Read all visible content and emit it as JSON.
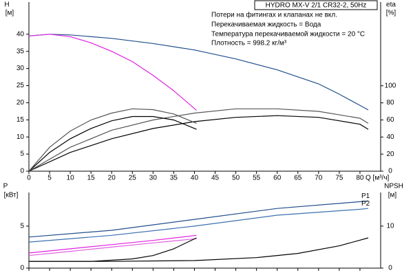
{
  "chart_data": [
    {
      "type": "line",
      "title": "HYDRO MX-V 2/1 CR32-2, 50Hz",
      "annotations": [
        "Потери на фитингах и клапанах не вкл.",
        "Перекачиваемая жидкость = Вода",
        "Температура перекачиваемой жидкости = 20 °C",
        "Плотность = 998.2 кг/м³"
      ],
      "ylabel": "H",
      "yunit": "[м]",
      "y2label": "eta",
      "y2unit": "[%]",
      "xlabel": "Q [м³/ч]",
      "xlim": [
        0,
        85
      ],
      "xticks": [
        0,
        5,
        10,
        15,
        20,
        25,
        30,
        35,
        40,
        45,
        50,
        55,
        60,
        65,
        70,
        75,
        80
      ],
      "ylim": [
        0,
        49.4
      ],
      "yticks": [
        0,
        5,
        10,
        15,
        20,
        25,
        30,
        35,
        40
      ],
      "y2lim": [
        0,
        198
      ],
      "y2ticks": [
        0,
        20,
        40,
        60,
        80,
        100
      ],
      "series": [
        {
          "color": "#1f4e8c",
          "x": [
            0,
            5,
            10,
            20,
            30,
            40,
            50,
            60,
            70,
            75,
            82
          ],
          "values": [
            39.5,
            40,
            39.8,
            38.8,
            37.3,
            35.4,
            32.8,
            29.6,
            25.5,
            22.5,
            17.9
          ]
        },
        {
          "color": "#e020e0",
          "x": [
            0,
            5,
            10,
            15,
            20,
            25,
            30,
            35,
            40.5
          ],
          "values": [
            39.5,
            40,
            39.3,
            37.5,
            35,
            32,
            28,
            23.5,
            17.8
          ]
        },
        {
          "color": "#000000",
          "axis": "y2",
          "x": [
            0,
            10,
            20,
            30,
            40,
            50,
            60,
            70,
            80,
            82
          ],
          "values": [
            0,
            22,
            38,
            50,
            58,
            63,
            65,
            63,
            55,
            49
          ]
        },
        {
          "color": "#555555",
          "axis": "y2",
          "x": [
            0,
            10,
            20,
            30,
            40,
            50,
            60,
            70,
            80,
            82
          ],
          "values": [
            0,
            28,
            48,
            60,
            68,
            73,
            73,
            70,
            62,
            56
          ]
        },
        {
          "color": "#000000",
          "axis": "y2",
          "x": [
            0,
            5,
            10,
            15,
            20,
            25,
            30,
            35,
            40.5
          ],
          "values": [
            0,
            22,
            38,
            50,
            59,
            64,
            64,
            60,
            49
          ]
        },
        {
          "color": "#555555",
          "axis": "y2",
          "x": [
            0,
            5,
            10,
            15,
            20,
            25,
            30,
            35,
            40.5
          ],
          "values": [
            0,
            28,
            47,
            60,
            68,
            73,
            72,
            67,
            56
          ]
        }
      ]
    },
    {
      "type": "line",
      "ylabel": "P",
      "yunit": "[кВт]",
      "y2label": "NPSH",
      "y2unit": "[м]",
      "xlim": [
        0,
        85
      ],
      "xticks": [
        0,
        5,
        10,
        15,
        20,
        25,
        30,
        35,
        40,
        45,
        50,
        55,
        60,
        65,
        70,
        75,
        80
      ],
      "ylim": [
        0,
        9
      ],
      "yticks": [
        0,
        5
      ],
      "y2lim": [
        0,
        18
      ],
      "y2ticks": [
        0,
        10
      ],
      "series": [
        {
          "name": "P1",
          "color": "#1f4e8c",
          "x": [
            0,
            20,
            40,
            60,
            80,
            82
          ],
          "values": [
            3.7,
            4.5,
            5.8,
            7.1,
            7.9,
            8.0
          ]
        },
        {
          "name": "P2",
          "color": "#3a6fb0",
          "x": [
            0,
            20,
            40,
            60,
            80,
            82
          ],
          "values": [
            3.1,
            3.9,
            5.0,
            6.3,
            7.0,
            7.1
          ]
        },
        {
          "color": "#e020e0",
          "x": [
            0,
            10,
            20,
            30,
            40.5
          ],
          "values": [
            1.8,
            2.3,
            2.8,
            3.3,
            3.9
          ]
        },
        {
          "color": "#e060e0",
          "x": [
            0,
            10,
            20,
            30,
            40.5
          ],
          "values": [
            1.5,
            2.0,
            2.5,
            3.0,
            3.5
          ]
        },
        {
          "color": "#000000",
          "axis": "y2",
          "x": [
            0,
            20,
            40,
            55,
            65,
            75,
            82
          ],
          "values": [
            1.6,
            1.6,
            1.8,
            2.5,
            3.5,
            5.3,
            7.2
          ]
        },
        {
          "color": "#000000",
          "axis": "y2",
          "x": [
            0,
            15,
            25,
            30,
            35,
            40.5
          ],
          "values": [
            1.6,
            1.6,
            2.2,
            3,
            4.6,
            7.2
          ]
        }
      ]
    }
  ]
}
